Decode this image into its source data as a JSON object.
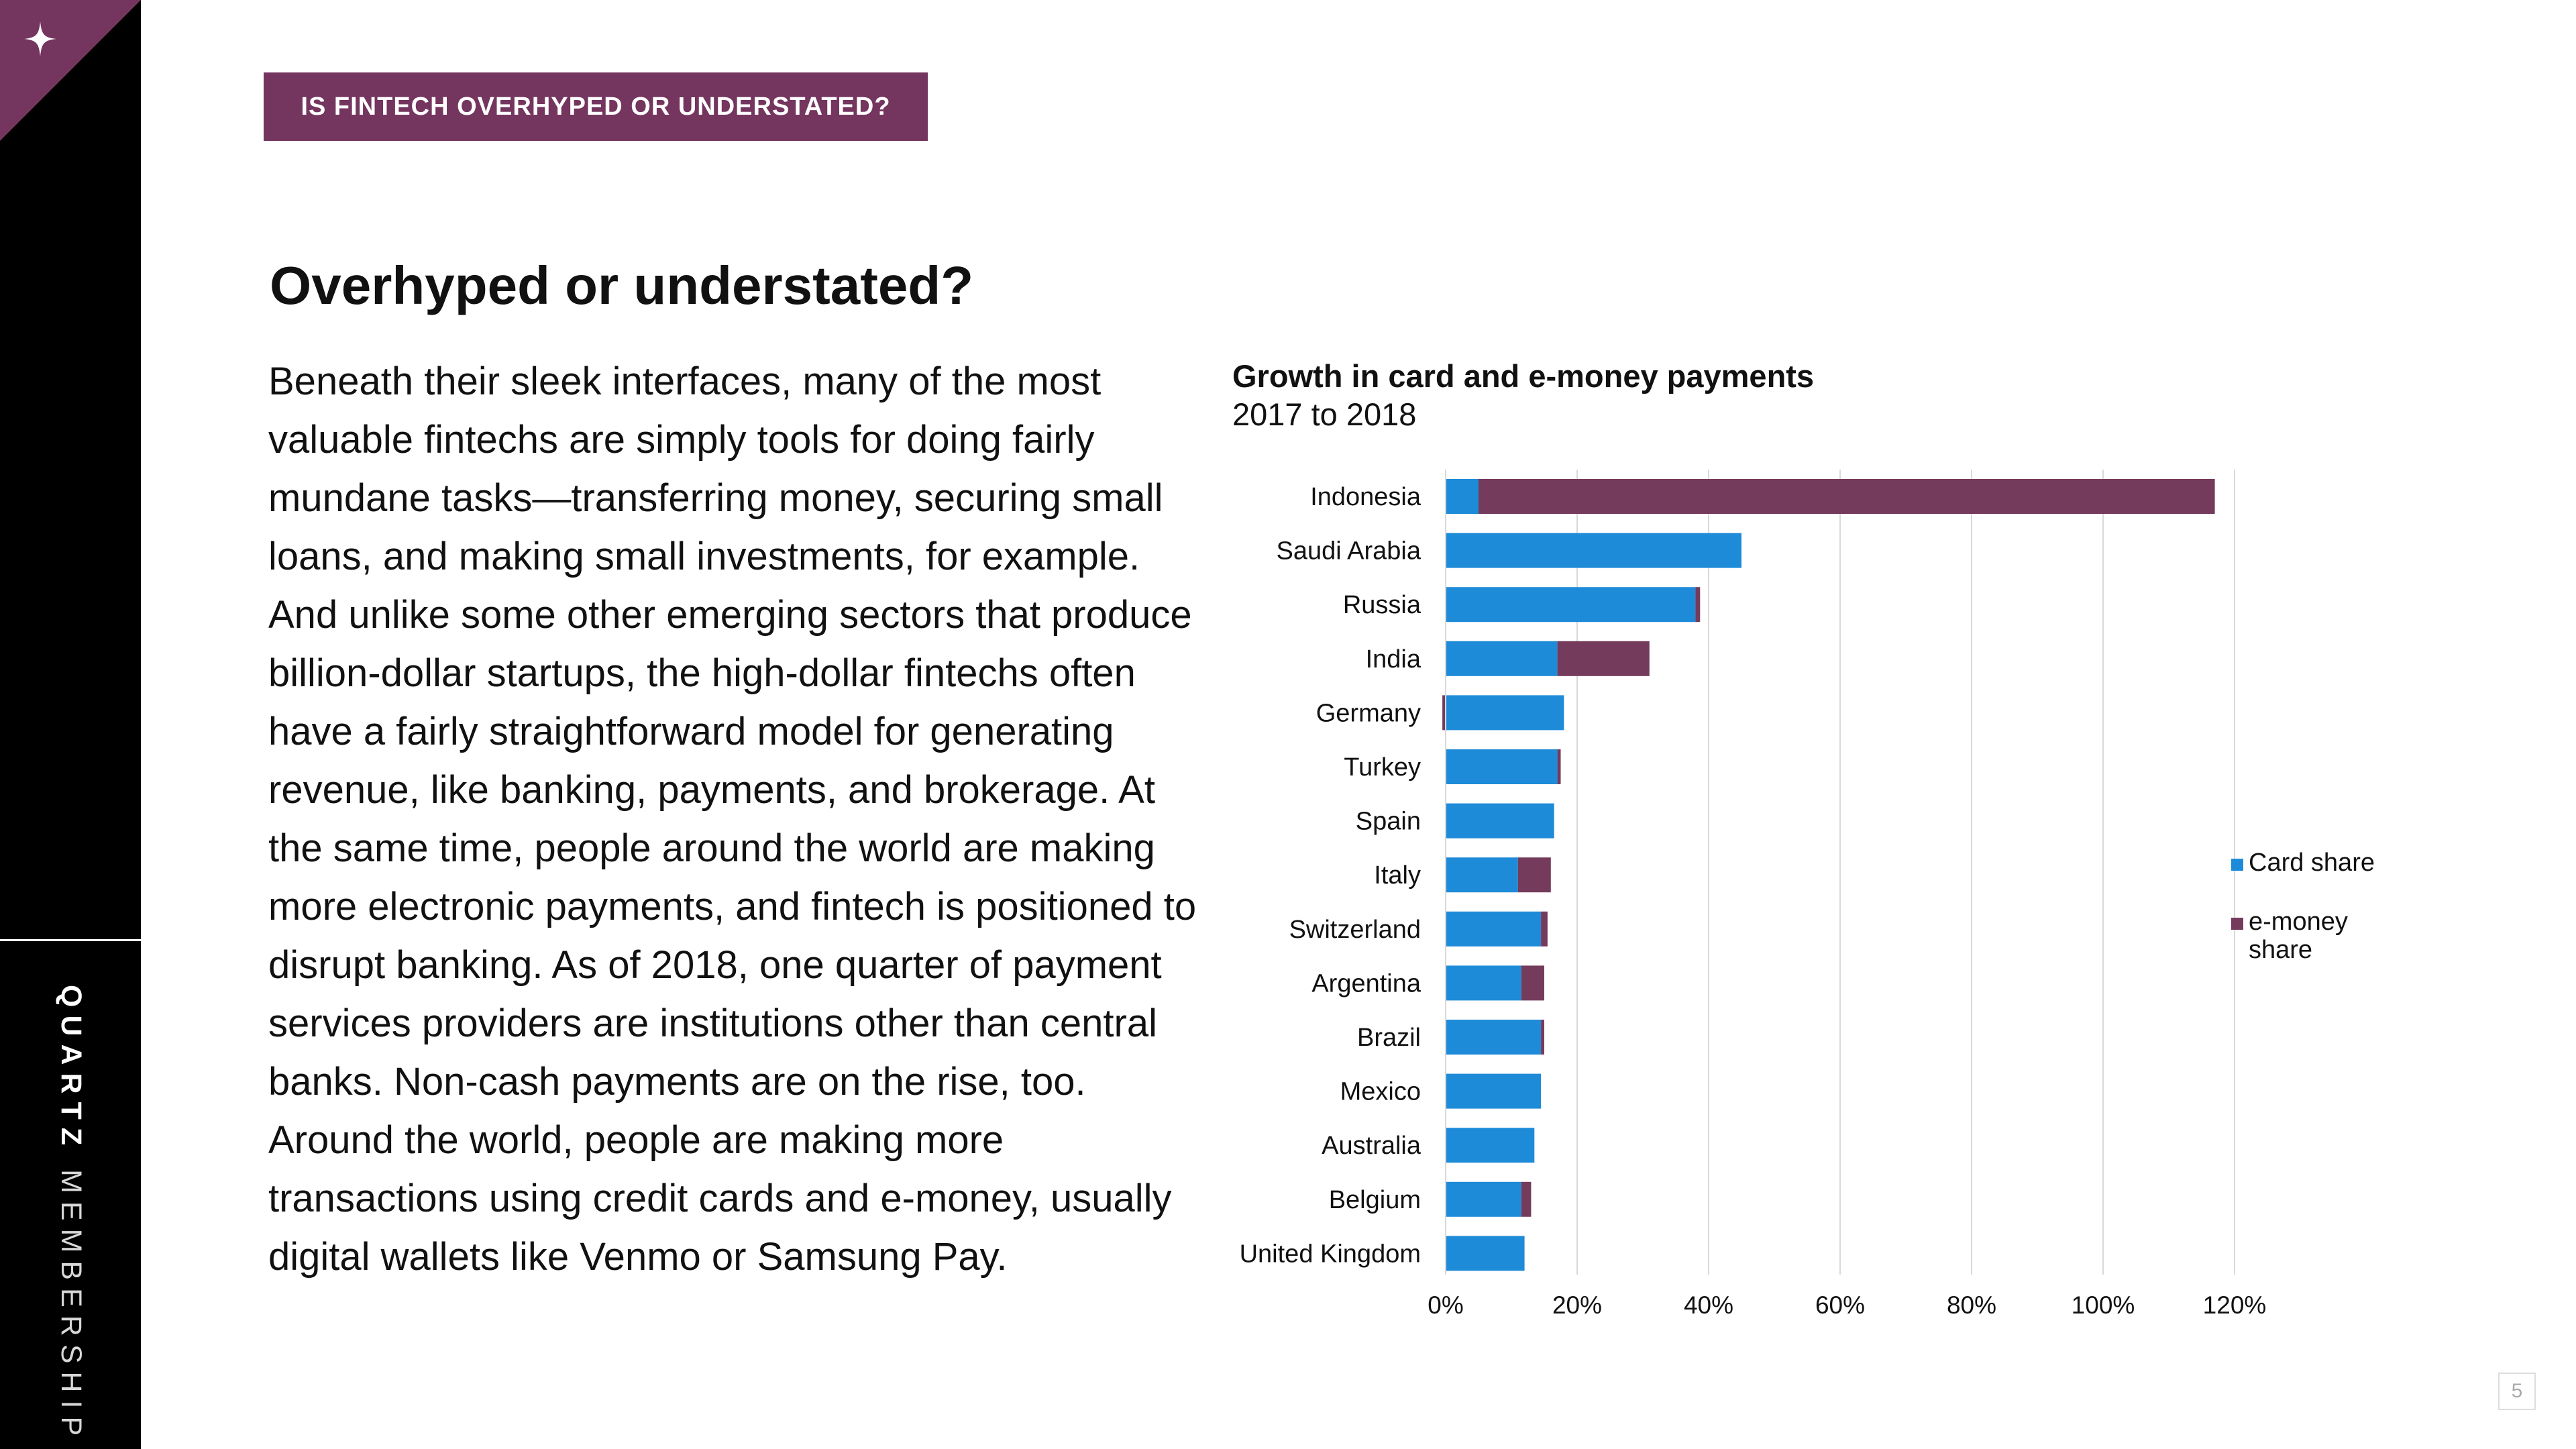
{
  "sidebar": {
    "brand_bold": "QUARTZ",
    "brand_light": "MEMBERSHIP",
    "corner_icon": "sparkle-icon"
  },
  "section_tag": "IS FINTECH OVERHYPED OR UNDERSTATED?",
  "page_title": "Overhyped or understated?",
  "body_text": "Beneath their sleek interfaces, many of the most valuable fintechs are simply tools for doing fairly mundane tasks—transferring money, securing small loans, and making small investments, for example. And unlike some other emerging sectors that produce billion-dollar startups, the high-dollar fintechs often have a fairly straightforward model for generating revenue, like banking, payments, and brokerage. At the same time, people around the world are making more electronic payments, and fintech is positioned to disrupt banking. As of 2018, one quarter of payment services providers are institutions other than central banks. Non-cash payments are on the rise, too. Around the world, people are making more transactions using credit cards and e-money, usually digital wallets like Venmo or Samsung Pay.",
  "page_number": "5",
  "colors": {
    "brand_purple": "#74355e",
    "card_share": "#1e8bd8",
    "emoney_share": "#743b5c",
    "sidebar": "#000000"
  },
  "chart_data": {
    "type": "bar",
    "orientation": "horizontal",
    "stacked": true,
    "title": "Growth in card and e-money payments",
    "subtitle": "2017 to 2018",
    "categories": [
      "Indonesia",
      "Saudi Arabia",
      "Russia",
      "India",
      "Germany",
      "Turkey",
      "Spain",
      "Italy",
      "Switzerland",
      "Argentina",
      "Brazil",
      "Mexico",
      "Australia",
      "Belgium",
      "United Kingdom"
    ],
    "series": [
      {
        "name": "Card share",
        "values": [
          5,
          45,
          38,
          17,
          18,
          17,
          16.5,
          11,
          14.5,
          11.5,
          14.5,
          14.5,
          13.5,
          11.5,
          12
        ],
        "color": "#1e8bd8"
      },
      {
        "name": "e-money share",
        "values": [
          112,
          0,
          0.7,
          14,
          -0.5,
          0.5,
          0,
          5,
          1,
          3.5,
          0.5,
          0,
          0,
          1.5,
          0
        ],
        "color": "#743b5c"
      }
    ],
    "x_ticks": [
      "0%",
      "20%",
      "40%",
      "60%",
      "80%",
      "100%",
      "120%"
    ],
    "xlim": [
      0,
      120
    ],
    "grid": "vertical",
    "legend_position": "right"
  }
}
